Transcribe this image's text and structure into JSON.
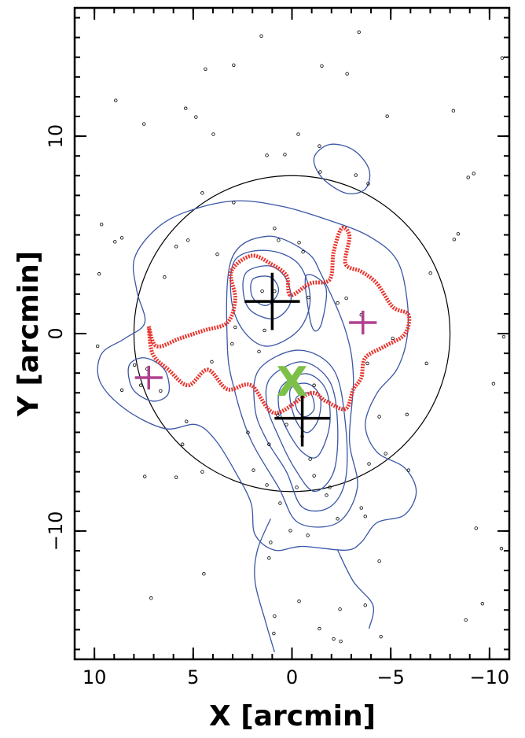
{
  "chart_data": {
    "type": "scatter",
    "xlabel": "X [arcmin]",
    "ylabel": "Y [arcmin]",
    "xlim": [
      11,
      -11
    ],
    "ylim": [
      -16.5,
      16.5
    ],
    "xticks": [
      {
        "value": 10,
        "label": "10"
      },
      {
        "value": 5,
        "label": "5"
      },
      0,
      {
        "value": -5,
        "label": "−5"
      },
      {
        "value": -10,
        "label": "−10"
      }
    ],
    "yticks": [
      {
        "value": -10,
        "label": "−10"
      },
      0,
      10
    ],
    "xminorticks": [
      -11,
      -10,
      -9,
      -8,
      -7,
      -6,
      -5,
      -4,
      -3,
      -2,
      -1,
      0,
      1,
      2,
      3,
      4,
      5,
      6,
      7,
      8,
      9,
      10,
      11
    ],
    "yminorticks": [
      -16,
      -15,
      -14,
      -13,
      -12,
      -11,
      -10,
      -9,
      -8,
      -7,
      -6,
      -5,
      -4,
      -3,
      -2,
      -1,
      0,
      1,
      2,
      3,
      4,
      5,
      6,
      7,
      8,
      9,
      10,
      11,
      12,
      13,
      14,
      15,
      16
    ],
    "points": {
      "color": "#000000",
      "x": [
        1.55,
        -3.39,
        2.95,
        4.38,
        -1.51,
        -2.79,
        -10.64,
        8.92,
        7.49,
        5.38,
        4.86,
        3.98,
        -4.82,
        -8.17,
        -0.32,
        -1.39,
        1.27,
        0.36,
        -3.23,
        -3.86,
        -1.43,
        -8.92,
        -9.2,
        4.54,
        2.95,
        9.64,
        8.61,
        8.96,
        5.26,
        5.86,
        3.78,
        0.88,
        0.68,
        -0.36,
        -0.56,
        9.76,
        6.45,
        0.88,
        1.51,
        -0.84,
        -7.01,
        -8.41,
        -8.21,
        -2.75,
        -2.31,
        2.87,
        1.39,
        3.03,
        4.06,
        1.67,
        -3.51,
        -5.1,
        -3.82,
        -6.81,
        7.97,
        7.33,
        7.65,
        6.65,
        8.61,
        9.84,
        -10.2,
        -10.72,
        -5.82,
        -4.42,
        -3.9,
        -4.74,
        -5.9,
        5.34,
        5.54,
        5.86,
        7.45,
        4.54,
        2.23,
        1.16,
        1.95,
        1.27,
        -1.12,
        -1.91,
        -0.24,
        -0.92,
        0.6,
        0.08,
        1.08,
        1.16,
        -0.8,
        -2.31,
        -3.71,
        -4.42,
        -2.43,
        -2.11,
        -1.39,
        -0.36,
        0.88,
        0.92,
        -2.47,
        -4.5,
        -3.71,
        -9.64,
        -8.8,
        4.46,
        7.13,
        -10.6,
        -9.32,
        -3.51,
        -1.75,
        0.72,
        -0.52,
        0.28,
        -1.12
      ],
      "y": [
        15.07,
        15.27,
        13.6,
        13.4,
        13.56,
        13.16,
        13.96,
        11.81,
        10.62,
        11.41,
        10.97,
        10.1,
        11.01,
        11.29,
        10.1,
        9.5,
        9.03,
        9.07,
        8.03,
        7.59,
        8.19,
        7.91,
        8.11,
        7.12,
        6.64,
        5.53,
        4.85,
        4.65,
        4.73,
        4.41,
        4.02,
        5.33,
        4.73,
        4.61,
        4.14,
        3.02,
        2.86,
        2.15,
        2.15,
        1.83,
        3.06,
        5.05,
        4.77,
        1.79,
        1.55,
        0.32,
        0.16,
        -0.52,
        -1.43,
        -0.91,
        0.95,
        -0.24,
        -1.51,
        -1.51,
        -1.59,
        -1.79,
        -2.62,
        -2.9,
        -2.86,
        -0.64,
        -2.54,
        -0.16,
        -4.1,
        -4.21,
        -6.6,
        -6.08,
        -6.92,
        -4.45,
        -5.61,
        -7.28,
        -7.24,
        -7.0,
        -5.01,
        -5.61,
        -6.92,
        -7.67,
        -7.2,
        -7.79,
        -7.79,
        -6.36,
        -8.59,
        -9.98,
        -10.58,
        -11.37,
        -10.22,
        -9.38,
        -9.26,
        -11.53,
        -13.96,
        -15.47,
        -14.95,
        -13.56,
        -14.31,
        -15.19,
        -15.59,
        -15.35,
        -13.76,
        -13.68,
        -14.51,
        -12.17,
        -13.4,
        -10.89,
        -9.86,
        -8.83,
        -8.19,
        -4.14,
        -5.21,
        -4.61,
        -2.62
      ]
    },
    "contour_color": "#3a56a6",
    "contours": [
      {
        "closed": true,
        "x": [
          7.97,
          6.85,
          5.26,
          2.87,
          0.48,
          -1.91,
          -3.9,
          -5.3,
          -5.82,
          -5.82,
          -5.3,
          -4.3,
          -3.71,
          -4.3,
          -5.7,
          -6.29,
          -5.7,
          -4.3,
          -3.5,
          -2.71,
          -0.52,
          0.88,
          1.87,
          2.07,
          2.87,
          3.86,
          4.86,
          6.45,
          8.45,
          9.72,
          9.64,
          8.45,
          7.45,
          7.85
        ],
        "y": [
          3.82,
          5.33,
          6.2,
          6.72,
          6.44,
          5.73,
          4.93,
          3.74,
          1.75,
          -0.24,
          -1.83,
          -3.02,
          -4.61,
          -6.0,
          -6.8,
          -8.0,
          -9.18,
          -9.58,
          -10.58,
          -10.97,
          -10.78,
          -10.97,
          -10.18,
          -8.59,
          -7.0,
          -5.41,
          -4.61,
          -4.81,
          -3.82,
          -2.43,
          -1.03,
          -0.24,
          0.56,
          2.15
        ]
      },
      {
        "closed": false,
        "x": [
          1.08,
          1.75,
          1.87,
          1.35,
          0.88
        ],
        "y": [
          -9.38,
          -10.97,
          -12.56,
          -14.55,
          -16.14
        ]
      },
      {
        "closed": false,
        "x": [
          -2.31,
          -3.11,
          -4.1,
          -3.9
        ],
        "y": [
          -10.97,
          -12.56,
          -13.76,
          -14.95
        ]
      },
      {
        "closed": true,
        "x": [
          -1.12,
          -1.91,
          -3.11,
          -3.9,
          -3.71,
          -2.71,
          -1.51
        ],
        "y": [
          8.91,
          9.58,
          9.3,
          8.31,
          7.32,
          7.12,
          7.91
        ]
      },
      {
        "closed": true,
        "x": [
          8.25,
          7.45,
          6.45,
          6.25,
          7.05,
          8.05
        ],
        "y": [
          -1.63,
          -1.23,
          -1.83,
          -3.02,
          -3.42,
          -2.82
        ]
      },
      {
        "closed": true,
        "x": [
          3.27,
          3.07,
          1.27,
          -0.72,
          -1.51,
          -2.71,
          -3.11,
          -2.91,
          -3.31,
          -2.31,
          -0.32,
          0.68,
          2.07,
          2.87
        ],
        "y": [
          -0.64,
          3.74,
          4.93,
          4.14,
          2.94,
          0.16,
          -2.23,
          -5.41,
          -7.79,
          -9.58,
          -9.58,
          -7.79,
          -5.41,
          -3.02
        ]
      },
      {
        "closed": true,
        "x": [
          2.87,
          1.27,
          -0.32,
          -0.92,
          -0.32,
          1.27,
          2.47,
          3.07
        ],
        "y": [
          3.74,
          4.21,
          3.54,
          1.75,
          0.16,
          -0.64,
          0.16,
          1.75
        ]
      },
      {
        "closed": true,
        "x": [
          2.27,
          1.08,
          0.28,
          0.08,
          0.88,
          2.07,
          2.47
        ],
        "y": [
          3.14,
          3.42,
          2.74,
          1.55,
          0.76,
          1.15,
          2.15
        ]
      },
      {
        "closed": true,
        "x": [
          1.99,
          1.08,
          0.68,
          1.27,
          1.99
        ],
        "y": [
          2.74,
          2.86,
          2.15,
          1.43,
          1.83
        ]
      },
      {
        "closed": true,
        "x": [
          -0.72,
          -1.71,
          -1.51,
          -1.12,
          -0.84
        ],
        "y": [
          2.94,
          2.35,
          0.56,
          0.16,
          1.15
        ]
      },
      {
        "closed": true,
        "x": [
          1.67,
          -0.32,
          -2.11,
          -2.71,
          -2.71,
          -1.91,
          -0.52,
          0.28,
          1.27,
          1.87
        ],
        "y": [
          -1.83,
          -0.84,
          -1.83,
          -4.61,
          -7.39,
          -8.79,
          -8.79,
          -7.0,
          -5.41,
          -3.82
        ]
      },
      {
        "closed": true,
        "x": [
          1.08,
          -0.52,
          -1.91,
          -2.31,
          -2.11,
          -1.12,
          -0.12,
          0.68,
          1.27
        ],
        "y": [
          -2.23,
          -1.43,
          -2.43,
          -4.61,
          -7.0,
          -7.99,
          -6.8,
          -5.21,
          -3.62
        ]
      },
      {
        "closed": true,
        "x": [
          0.48,
          -0.72,
          -1.71,
          -1.91,
          -1.31,
          -0.52,
          0.28,
          0.68
        ],
        "y": [
          -2.62,
          -2.03,
          -2.82,
          -4.61,
          -6.2,
          -6.0,
          -4.81,
          -3.62
        ]
      },
      {
        "closed": true,
        "x": [
          0.08,
          -0.8,
          -1.43,
          -1.31,
          -0.72,
          -0.12
        ],
        "y": [
          -2.82,
          -2.54,
          -3.22,
          -4.41,
          -5.01,
          -4.21
        ]
      },
      {
        "closed": true,
        "x": [
          -0.24,
          -0.92,
          -1.12,
          -0.64,
          -0.24
        ],
        "y": [
          -3.22,
          -3.02,
          -3.82,
          -4.21,
          -3.82
        ]
      }
    ],
    "boundary": {
      "color": "#e8342c",
      "x": [
        7.25,
        6.85,
        5.66,
        4.46,
        3.27,
        2.87,
        3.07,
        2.07,
        1.08,
        0.28,
        0.08,
        -0.92,
        -1.91,
        -2.11,
        -2.51,
        -2.91,
        -2.71,
        -3.51,
        -4.3,
        -5.1,
        -5.9,
        -5.7,
        -4.7,
        -3.71,
        -3.51,
        -3.11,
        -2.71,
        -1.71,
        -0.92,
        0.88,
        2.07,
        3.27,
        4.26,
        5.26,
        6.25,
        7.05,
        7.25
      ],
      "y": [
        0.36,
        -0.64,
        -0.24,
        0.16,
        0.56,
        1.75,
        3.14,
        3.94,
        3.54,
        2.94,
        1.95,
        2.54,
        2.74,
        4.14,
        5.33,
        4.93,
        3.54,
        3.14,
        2.54,
        1.35,
        0.95,
        -0.04,
        -0.64,
        -1.23,
        -2.23,
        -2.82,
        -3.82,
        -3.42,
        -3.02,
        -4.02,
        -2.62,
        -2.82,
        -1.83,
        -2.62,
        -1.83,
        -1.03,
        0.36
      ]
    },
    "circle": {
      "center": [
        0,
        0
      ],
      "radius": 8,
      "color": "#000000"
    },
    "crosses": [
      {
        "x": 1.0,
        "y": 1.63,
        "xerr": 1.4,
        "yerr": 1.45,
        "color": "#000000"
      },
      {
        "x": -0.52,
        "y": -4.29,
        "xerr": 1.4,
        "yerr": 1.43,
        "color": "#000000"
      },
      {
        "x": 7.25,
        "y": -2.23,
        "xerr": 0.7,
        "yerr": 0.6,
        "color": "#b0408f"
      },
      {
        "x": -3.59,
        "y": 0.56,
        "xerr": 0.7,
        "yerr": 0.6,
        "color": "#b0408f"
      }
    ],
    "annotation": {
      "text": "X",
      "x": 0,
      "y": -2.6,
      "color": "#7cc04a"
    }
  }
}
